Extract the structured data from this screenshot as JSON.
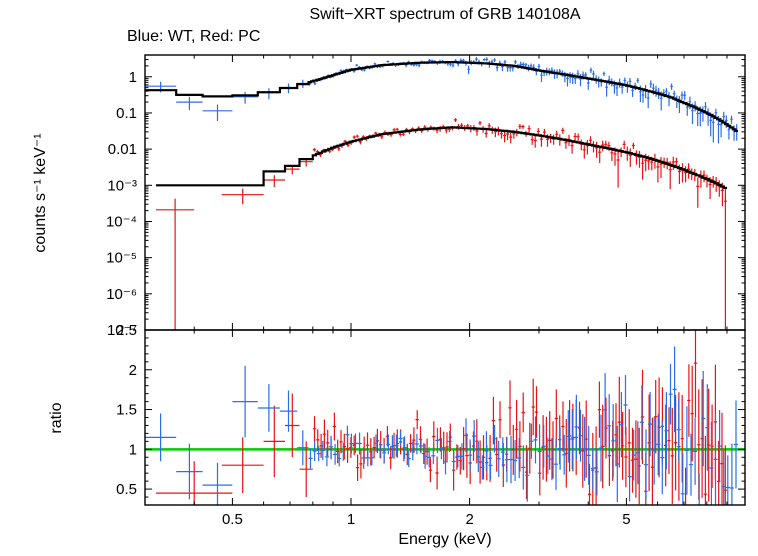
{
  "chart_data": {
    "type": "scatter",
    "title": "Swift−XRT spectrum of GRB 140108A",
    "subtitle": "Blue: WT, Red: PC",
    "xlabel": "Energy (keV)",
    "ylabel_top": "counts s⁻¹ keV⁻¹",
    "ylabel_bottom": "ratio",
    "legend": [
      {
        "label": "WT",
        "color_name": "blue"
      },
      {
        "label": "PC",
        "color_name": "red"
      }
    ],
    "colors": {
      "wt": "#2b6fe8",
      "pc": "#e81410",
      "model": "#000000",
      "ratio_line": "#00cc00",
      "frame": "#000000"
    },
    "axes": {
      "x_scale": "log",
      "x_range": [
        0.3,
        10
      ],
      "x_ticks": [
        0.5,
        1,
        2,
        5
      ],
      "x_tick_labels": [
        "0.5",
        "1",
        "2",
        "5"
      ],
      "x_minor_ticks": [
        0.4,
        0.6,
        0.7,
        0.8,
        0.9,
        3,
        4,
        6,
        7,
        8,
        9
      ],
      "top_y_scale": "log",
      "top_y_range": [
        1e-07,
        4
      ],
      "top_y_ticks": [
        1,
        0.1,
        0.01,
        0.001,
        0.0001,
        1e-05,
        1e-06,
        1e-07
      ],
      "top_y_tick_labels": [
        "1",
        "0.1",
        "0.01",
        "10⁻³",
        "10⁻⁴",
        "10⁻⁵",
        "10⁻⁶",
        "10⁻⁷"
      ],
      "bottom_y_scale": "linear",
      "bottom_y_range": [
        0.3,
        2.5
      ],
      "bottom_y_ticks": [
        0.5,
        1,
        1.5,
        2,
        2.5
      ],
      "bottom_y_tick_labels": [
        "0.5",
        "1",
        "1.5",
        "2",
        "2.5"
      ],
      "bottom_y_minor_step": 0.1,
      "ratio_reference": 1,
      "grid": false
    },
    "series": {
      "wt_model_anchors": [
        [
          0.3,
          0.5
        ],
        [
          0.35,
          0.38
        ],
        [
          0.4,
          0.3
        ],
        [
          0.5,
          0.28
        ],
        [
          0.6,
          0.35
        ],
        [
          0.7,
          0.5
        ],
        [
          0.8,
          0.75
        ],
        [
          0.9,
          1.1
        ],
        [
          1.0,
          1.55
        ],
        [
          1.2,
          2.1
        ],
        [
          1.5,
          2.45
        ],
        [
          1.8,
          2.55
        ],
        [
          2.2,
          2.35
        ],
        [
          2.6,
          2.0
        ],
        [
          3.0,
          1.5
        ],
        [
          3.5,
          1.15
        ],
        [
          4.0,
          0.9
        ],
        [
          4.5,
          0.72
        ],
        [
          5.0,
          0.58
        ],
        [
          5.5,
          0.45
        ],
        [
          6.0,
          0.35
        ],
        [
          6.5,
          0.27
        ],
        [
          7.0,
          0.19
        ],
        [
          7.5,
          0.14
        ],
        [
          8.0,
          0.1
        ],
        [
          8.5,
          0.07
        ],
        [
          9.0,
          0.048
        ],
        [
          9.6,
          0.03
        ]
      ],
      "pc_model_anchors": [
        [
          0.3,
          0.001
        ],
        [
          0.55,
          0.001
        ],
        [
          0.58,
          0.0018
        ],
        [
          0.7,
          0.0032
        ],
        [
          0.8,
          0.0065
        ],
        [
          0.9,
          0.011
        ],
        [
          1.0,
          0.016
        ],
        [
          1.2,
          0.026
        ],
        [
          1.5,
          0.035
        ],
        [
          1.8,
          0.04
        ],
        [
          2.2,
          0.036
        ],
        [
          2.6,
          0.03
        ],
        [
          3.0,
          0.024
        ],
        [
          3.5,
          0.018
        ],
        [
          4.0,
          0.0135
        ],
        [
          4.5,
          0.0105
        ],
        [
          5.0,
          0.0082
        ],
        [
          5.5,
          0.0063
        ],
        [
          6.0,
          0.0048
        ],
        [
          6.5,
          0.0036
        ],
        [
          7.0,
          0.0027
        ],
        [
          7.5,
          0.002
        ],
        [
          8.0,
          0.0015
        ],
        [
          8.5,
          0.0011
        ],
        [
          9.0,
          0.0008
        ]
      ],
      "wt_data": {
        "points": [
          [
            0.3,
            0.36,
            0.55,
            0.18
          ],
          [
            0.36,
            0.42,
            0.2,
            0.08
          ],
          [
            0.42,
            0.5,
            0.115,
            0.055
          ],
          [
            0.5,
            0.58,
            0.28,
            0.1
          ],
          [
            0.58,
            0.66,
            0.36,
            0.12
          ],
          [
            0.66,
            0.73,
            0.5,
            0.15
          ],
          [
            0.73,
            0.78,
            0.66,
            0.17
          ]
        ],
        "gen": {
          "lo": 0.78,
          "hi": 9.6,
          "n": 165,
          "seed": 42,
          "sig": [
            0.1,
            0.35
          ],
          "efrac": [
            0.09,
            0.45
          ],
          "ramp_start": 1.5
        }
      },
      "pc_data": {
        "points": [
          [
            0.32,
            0.4,
            0.00021,
            0.00022
          ],
          [
            0.47,
            0.6,
            0.00055,
            0.00025
          ],
          [
            0.6,
            0.68,
            0.0014,
            0.0005
          ],
          [
            0.68,
            0.74,
            0.0028,
            0.0008
          ],
          [
            0.74,
            0.8,
            0.0045,
            0.0012
          ]
        ],
        "gen": {
          "lo": 0.8,
          "hi": 9.0,
          "n": 135,
          "seed": 7,
          "sig": [
            0.13,
            0.4
          ],
          "efrac": [
            0.12,
            0.5
          ],
          "ramp_start": 1.5
        }
      },
      "wt_ratio": {
        "points": [
          [
            0.3,
            0.36,
            1.15,
            0.3
          ],
          [
            0.36,
            0.42,
            0.72,
            0.35
          ],
          [
            0.42,
            0.5,
            0.55,
            0.28
          ],
          [
            0.5,
            0.58,
            1.6,
            0.45
          ],
          [
            0.58,
            0.66,
            1.52,
            0.3
          ],
          [
            0.66,
            0.73,
            1.48,
            0.26
          ],
          [
            0.73,
            0.78,
            1.02,
            0.22
          ]
        ],
        "gen": {
          "lo": 0.78,
          "hi": 9.6,
          "n": 105,
          "seed": 11,
          "sig": [
            0.1,
            0.35
          ],
          "efrac": [
            0.12,
            0.55
          ],
          "ramp_start": 1.5
        }
      },
      "pc_ratio": {
        "points": [
          [
            0.32,
            0.5,
            0.45,
            0.4
          ],
          [
            0.47,
            0.6,
            0.8,
            0.35
          ],
          [
            0.6,
            0.68,
            1.1,
            0.45
          ],
          [
            0.68,
            0.74,
            1.3,
            0.4
          ],
          [
            0.74,
            0.8,
            0.75,
            0.35
          ]
        ],
        "gen": {
          "lo": 0.8,
          "hi": 9.0,
          "n": 125,
          "seed": 23,
          "sig": [
            0.13,
            0.45
          ],
          "efrac": [
            0.15,
            0.65
          ],
          "ramp_start": 1.5
        }
      }
    }
  }
}
